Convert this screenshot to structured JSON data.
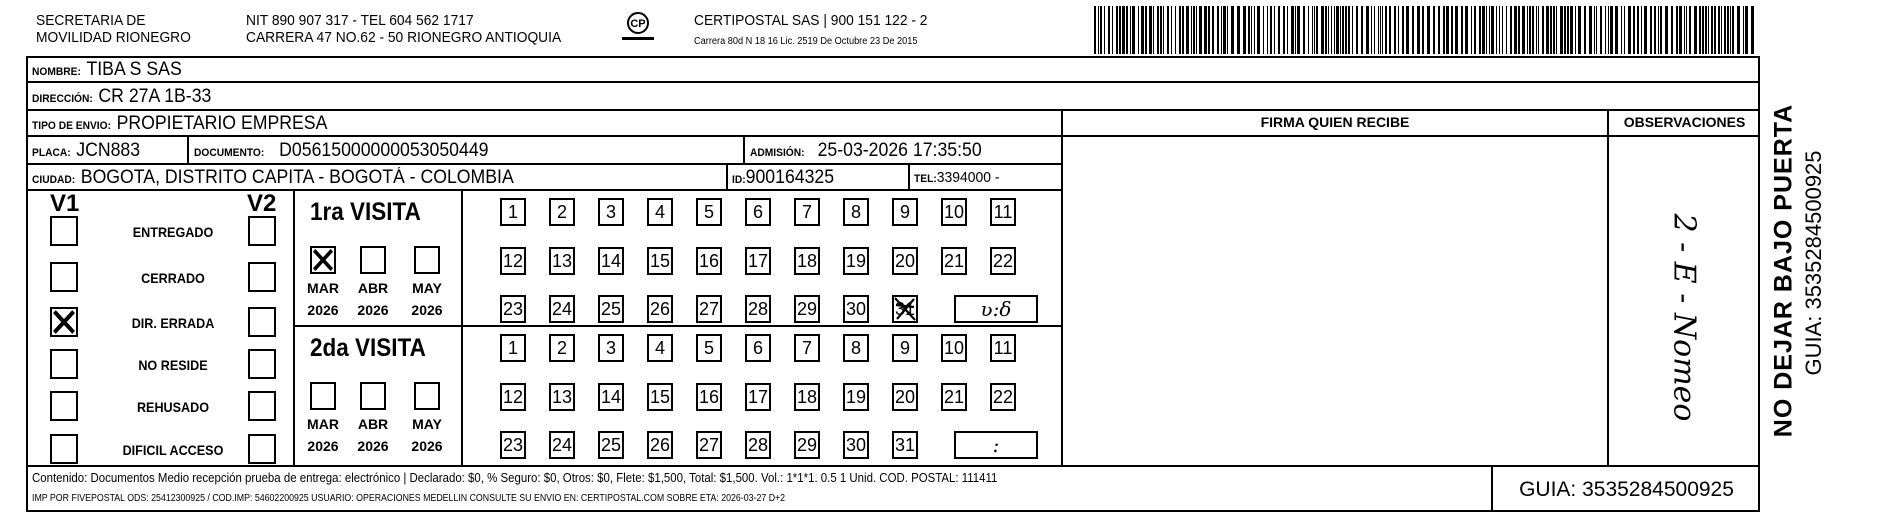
{
  "header": {
    "entity_line1": "SECRETARIA DE",
    "entity_line2": "MOVILIDAD RIONEGRO",
    "nit_line": "NIT 890 907 317 - TEL 604 562 1717",
    "address_line": "CARRERA 47 NO.62 - 50 RIONEGRO ANTIOQUIA",
    "courier_line": "CERTIPOSTAL SAS | 900 151 122 - 2",
    "license_line": "Carrera 80d N 18 16  Lic. 2519 De Octubre 23 De 2015",
    "logo_icon": "certipostal-logo-icon",
    "barcode_icon": "barcode-icon"
  },
  "fields": {
    "nombre_label": "NOMBRE:",
    "nombre": "TIBA S SAS",
    "direccion_label": "DIRECCIÓN:",
    "direccion": "CR 27A 1B-33",
    "tipo_label": "TIPO DE ENVIO:",
    "tipo": "PROPIETARIO EMPRESA",
    "placa_label": "PLACA:",
    "placa": "JCN883",
    "documento_label": "DOCUMENTO:",
    "documento": "D05615000000053050449",
    "admision_label": "ADMISIÓN:",
    "admision": "25-03-2026 17:35:50",
    "ciudad_label": "CIUDAD:",
    "ciudad": "BOGOTA, DISTRITO CAPITA - BOGOTÁ - COLOMBIA",
    "id_label": "ID:",
    "id": "900164325",
    "tel_label": "TEL:",
    "tel": "3394000 -"
  },
  "firma_header": "FIRMA QUIEN RECIBE",
  "observaciones_header": "OBSERVACIONES",
  "observaciones_handwritten": "2 - E - Nomeo",
  "status": {
    "v1_label": "V1",
    "v2_label": "V2",
    "options": [
      {
        "label": "ENTREGADO",
        "v1": false,
        "v2": false
      },
      {
        "label": "CERRADO",
        "v1": false,
        "v2": false
      },
      {
        "label": "DIR. ERRADA",
        "v1": true,
        "v2": false
      },
      {
        "label": "NO RESIDE",
        "v1": false,
        "v2": false
      },
      {
        "label": "REHUSADO",
        "v1": false,
        "v2": false
      },
      {
        "label": "DIFICIL ACCESO",
        "v1": false,
        "v2": false
      }
    ]
  },
  "visits": [
    {
      "title": "1ra VISITA",
      "months": [
        {
          "month": "MAR",
          "year": "2026",
          "checked": true
        },
        {
          "month": "ABR",
          "year": "2026",
          "checked": false
        },
        {
          "month": "MAY",
          "year": "2026",
          "checked": false
        }
      ],
      "days": [
        1,
        2,
        3,
        4,
        5,
        6,
        7,
        8,
        9,
        10,
        11,
        12,
        13,
        14,
        15,
        16,
        17,
        18,
        19,
        20,
        21,
        22,
        23,
        24,
        25,
        26,
        27,
        28,
        29,
        30,
        31
      ],
      "marked_day": 31,
      "time": "ʋ:δ"
    },
    {
      "title": "2da VISITA",
      "months": [
        {
          "month": "MAR",
          "year": "2026",
          "checked": false
        },
        {
          "month": "ABR",
          "year": "2026",
          "checked": false
        },
        {
          "month": "MAY",
          "year": "2026",
          "checked": false
        }
      ],
      "days": [
        1,
        2,
        3,
        4,
        5,
        6,
        7,
        8,
        9,
        10,
        11,
        12,
        13,
        14,
        15,
        16,
        17,
        18,
        19,
        20,
        21,
        22,
        23,
        24,
        25,
        26,
        27,
        28,
        29,
        30,
        31
      ],
      "marked_day": null,
      "time": ":"
    }
  ],
  "footer": {
    "line1": "Contenido: Documentos Medio recepción prueba de entrega: electrónico | Declarado: $0, % Seguro: $0, Otros: $0, Flete: $1,500, Total: $1,500. Vol.: 1*1*1. 0.5  1 Unid. COD. POSTAL: 111411",
    "line2": "IMP POR FIVEPOSTAL ODS: 25412300925 / COD.IMP: 54602200925 USUARIO: OPERACIONES MEDELLIN CONSULTE SU ENVIO EN: CERTIPOSTAL.COM SOBRE ETA: 2026-03-27 D+2",
    "guia": "GUIA: 3535284500925"
  },
  "side": {
    "warning": "NO DEJAR BAJO PUERTA",
    "guia": "GUIA: 3535284500925"
  }
}
